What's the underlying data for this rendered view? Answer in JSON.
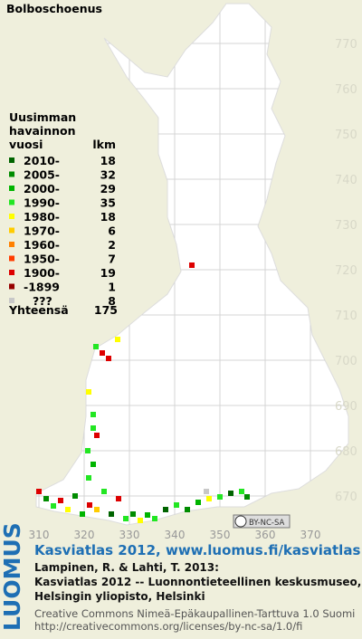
{
  "title": "Bolboschoenus",
  "legend": {
    "heading": [
      "Uusimman",
      "havainnon"
    ],
    "col_year": "vuosi",
    "col_count": "lkm",
    "rows": [
      {
        "label": "2010-",
        "count": 18,
        "color": "#006400"
      },
      {
        "label": "2005-",
        "count": 32,
        "color": "#008c00"
      },
      {
        "label": "2000-",
        "count": 29,
        "color": "#00b400"
      },
      {
        "label": "1990-",
        "count": 35,
        "color": "#22e622"
      },
      {
        "label": "1980-",
        "count": 18,
        "color": "#ffff00"
      },
      {
        "label": "1970-",
        "count": 6,
        "color": "#ffcc00"
      },
      {
        "label": "1960-",
        "count": 2,
        "color": "#ff8000"
      },
      {
        "label": "1950-",
        "count": 7,
        "color": "#ff3c00"
      },
      {
        "label": "1900-",
        "count": 19,
        "color": "#dd0000"
      },
      {
        "label": "-1899",
        "count": 1,
        "color": "#960000"
      },
      {
        "label": "???",
        "count": 8,
        "color": "#c8c8c8"
      }
    ],
    "total_label": "Yhteensä",
    "total": 175
  },
  "grid": {
    "northing": [
      770,
      760,
      750,
      740,
      730,
      720,
      710,
      700,
      690,
      680,
      670
    ],
    "easting": [
      310,
      320,
      330,
      340,
      350,
      360,
      370
    ]
  },
  "badge": "BY-NC-SA",
  "footer": {
    "link": "Kasviatlas 2012, www.luomus.fi/kasviatlas",
    "citation": [
      "Lampinen, R. & Lahti, T. 2013:",
      "Kasviatlas 2012 -- Luonnontieteellinen keskusmuseo,",
      "Helsingin yliopisto, Helsinki"
    ],
    "license": [
      "Creative Commons Nimeä-Epäkaupallinen-Tarttuva 1.0 Suomi",
      "http://creativecommons.org/licenses/by-nc-sa/1.0/fi"
    ]
  },
  "logo": "LUOMUS"
}
